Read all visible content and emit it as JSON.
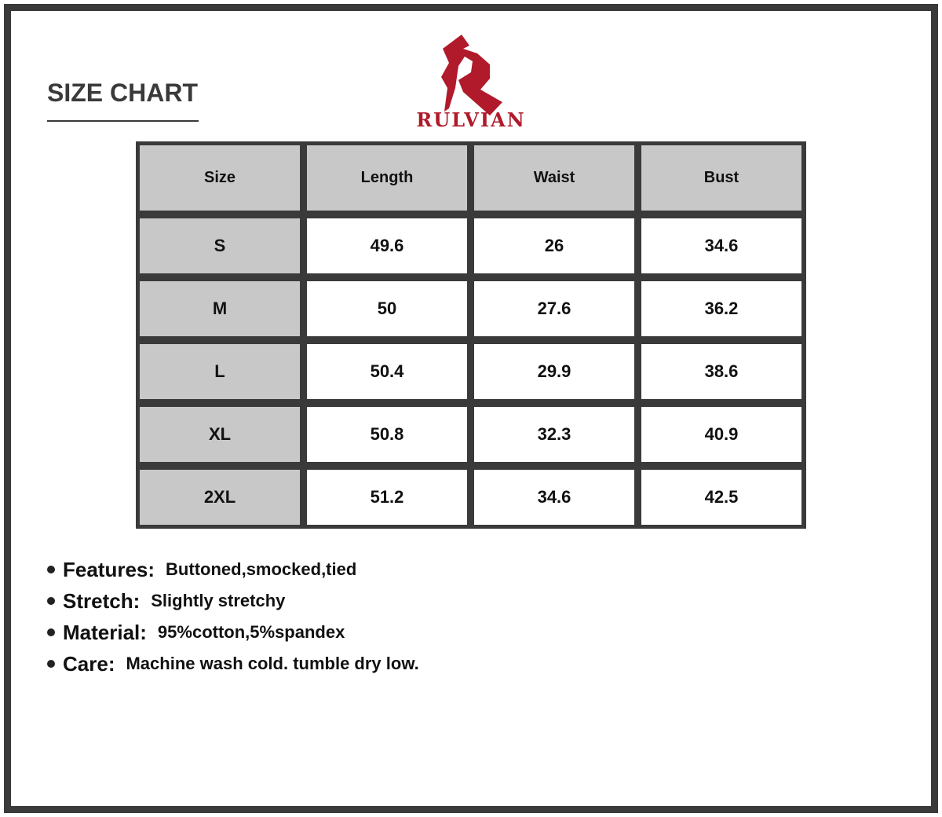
{
  "title": "SIZE CHART",
  "brand": {
    "name": "RULVIAN",
    "color": "#b01a2a"
  },
  "table": {
    "headers": [
      "Size",
      "Length",
      "Waist",
      "Bust"
    ],
    "rows": [
      [
        "S",
        "49.6",
        "26",
        "34.6"
      ],
      [
        "M",
        "50",
        "27.6",
        "36.2"
      ],
      [
        "L",
        "50.4",
        "29.9",
        "38.6"
      ],
      [
        "XL",
        "50.8",
        "32.3",
        "40.9"
      ],
      [
        "2XL",
        "51.2",
        "34.6",
        "42.5"
      ]
    ]
  },
  "notes": [
    {
      "label": "Features:",
      "value": "Buttoned,smocked,tied"
    },
    {
      "label": "Stretch:",
      "value": "Slightly stretchy"
    },
    {
      "label": "Material:",
      "value": "95%cotton,5%spandex"
    },
    {
      "label": "Care:",
      "value": "Machine wash cold. tumble dry low."
    }
  ]
}
